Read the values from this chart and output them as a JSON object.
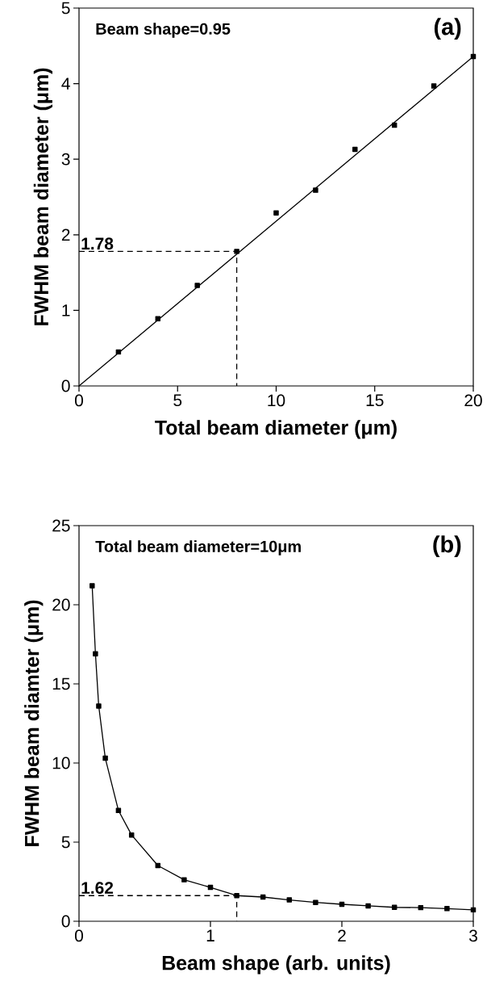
{
  "chart_data": [
    {
      "type": "scatter",
      "xlabel": "Total beam diameter (μm)",
      "ylabel": "FWHM beam diameter (μm)",
      "xlim": [
        0,
        20
      ],
      "ylim": [
        0,
        5
      ],
      "xticks": [
        0,
        5,
        10,
        15,
        20
      ],
      "yticks": [
        0,
        1,
        2,
        3,
        4,
        5
      ],
      "annotations": [
        "Beam shape=0.95",
        "(a)",
        {
          "text": "1.78",
          "x": 0,
          "y": 1.78
        }
      ],
      "series": [
        {
          "type": "line",
          "color": "#000000",
          "marker": "none",
          "line_style": "solid",
          "x": [
            0,
            20
          ],
          "values": [
            0,
            4.36
          ]
        },
        {
          "type": "line",
          "color": "#000000",
          "marker": "none",
          "line_style": "dashed",
          "x": [
            0,
            8,
            8
          ],
          "values": [
            1.78,
            1.78,
            0
          ]
        },
        {
          "color": "#000000",
          "marker": "square",
          "x": [
            2,
            4,
            6,
            8,
            10,
            12,
            14,
            16,
            18,
            20
          ],
          "values": [
            0.45,
            0.89,
            1.33,
            1.78,
            2.29,
            2.59,
            3.13,
            3.45,
            3.97,
            4.36
          ]
        }
      ]
    },
    {
      "type": "line",
      "xlabel": "Beam shape (arb. units)",
      "ylabel": "FWHM beam diamter (μm)",
      "xlim": [
        0,
        3
      ],
      "ylim": [
        0,
        25
      ],
      "xticks": [
        0,
        1,
        2,
        3
      ],
      "yticks": [
        0,
        5,
        10,
        15,
        20,
        25
      ],
      "annotations": [
        "Total beam diameter=10μm",
        "(b)",
        {
          "text": "1.62",
          "x": 0,
          "y": 1.62
        }
      ],
      "series": [
        {
          "color": "#000000",
          "marker": "none",
          "line_style": "dashed",
          "x": [
            0,
            1.2,
            1.2
          ],
          "values": [
            1.62,
            1.62,
            0
          ]
        },
        {
          "color": "#000000",
          "marker": "square",
          "line_style": "solid",
          "x": [
            0.1,
            0.125,
            0.15,
            0.2,
            0.3,
            0.4,
            0.6,
            0.8,
            1.0,
            1.2,
            1.4,
            1.6,
            1.8,
            2.0,
            2.2,
            2.4,
            2.6,
            2.8,
            3.0
          ],
          "values": [
            21.2,
            16.9,
            13.6,
            10.3,
            7.0,
            5.45,
            3.52,
            2.62,
            2.14,
            1.62,
            1.53,
            1.35,
            1.19,
            1.07,
            0.97,
            0.88,
            0.86,
            0.8,
            0.72
          ]
        }
      ]
    }
  ]
}
